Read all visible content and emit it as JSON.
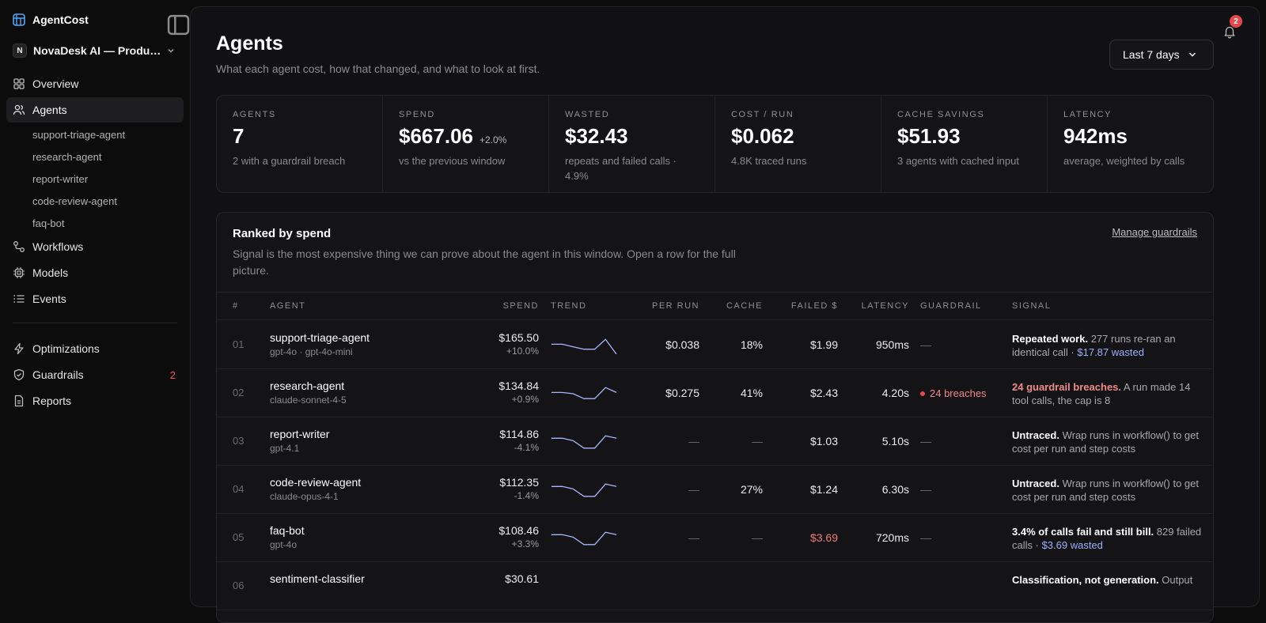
{
  "app": {
    "name": "AgentCost"
  },
  "org": {
    "initial": "N",
    "label": "NovaDesk AI — Production"
  },
  "nav": {
    "overview": "Overview",
    "agents": "Agents",
    "agent_children": [
      "support-triage-agent",
      "research-agent",
      "report-writer",
      "code-review-agent",
      "faq-bot"
    ],
    "workflows": "Workflows",
    "models": "Models",
    "events": "Events",
    "optimizations": "Optimizations",
    "guardrails": "Guardrails",
    "guardrails_count": "2",
    "reports": "Reports"
  },
  "header": {
    "title": "Agents",
    "subtitle": "What each agent cost, how that changed, and what to look at first.",
    "range": "Last 7 days",
    "notifications": "2"
  },
  "stats": [
    {
      "label": "Agents",
      "value": "7",
      "delta": "",
      "desc": "2 with a guardrail breach"
    },
    {
      "label": "Spend",
      "value": "$667.06",
      "delta": "+2.0%",
      "desc": "vs the previous window"
    },
    {
      "label": "Wasted",
      "value": "$32.43",
      "delta": "",
      "desc": "repeats and failed calls · 4.9%"
    },
    {
      "label": "Cost / run",
      "value": "$0.062",
      "delta": "",
      "desc": "4.8K traced runs"
    },
    {
      "label": "Cache savings",
      "value": "$51.93",
      "delta": "",
      "desc": "3 agents with cached input"
    },
    {
      "label": "Latency",
      "value": "942ms",
      "delta": "",
      "desc": "average, weighted by calls"
    }
  ],
  "table": {
    "title": "Ranked by spend",
    "desc": "Signal is the most expensive thing we can prove about the agent in this window. Open a row for the full picture.",
    "manage_link": "Manage guardrails",
    "columns": {
      "num": "#",
      "agent": "Agent",
      "spend": "Spend",
      "trend": "Trend",
      "per_run": "Per run",
      "cache": "Cache",
      "failed": "Failed $",
      "latency": "Latency",
      "guardrail": "Guardrail",
      "signal": "Signal"
    },
    "rows": [
      {
        "num": "01",
        "name": "support-triage-agent",
        "model": "gpt-4o · gpt-4o-mini",
        "spend": "$165.50",
        "delta": "+10.0%",
        "trend": [
          4,
          4,
          5,
          6,
          6,
          2,
          8
        ],
        "per_run": "$0.038",
        "cache": "18%",
        "failed": "$1.99",
        "failed_alert": false,
        "latency": "950ms",
        "guardrail": "—",
        "breach": false,
        "sig_bold": "Repeated work.",
        "sig_text": " 277 runs re-ran an identical call · ",
        "sig_hl": "$17.87 wasted"
      },
      {
        "num": "02",
        "name": "research-agent",
        "model": "claude-sonnet-4-5",
        "spend": "$134.84",
        "delta": "+0.9%",
        "trend": [
          4,
          4,
          4.5,
          6.5,
          6.5,
          2,
          4
        ],
        "per_run": "$0.275",
        "cache": "41%",
        "failed": "$2.43",
        "failed_alert": false,
        "latency": "4.20s",
        "guardrail": "24 breaches",
        "breach": true,
        "sig_bad": "24 guardrail breaches.",
        "sig_text": " A run made 14 tool calls, the cap is 8",
        "sig_hl": ""
      },
      {
        "num": "03",
        "name": "report-writer",
        "model": "gpt-4.1",
        "spend": "$114.86",
        "delta": "-4.1%",
        "trend": [
          3,
          3,
          4,
          7,
          7,
          2,
          3
        ],
        "per_run": "—",
        "cache": "—",
        "failed": "$1.03",
        "failed_alert": false,
        "latency": "5.10s",
        "guardrail": "—",
        "breach": false,
        "sig_bold": "Untraced.",
        "sig_text": " Wrap runs in workflow() to get cost per run and step costs",
        "sig_hl": ""
      },
      {
        "num": "04",
        "name": "code-review-agent",
        "model": "claude-opus-4-1",
        "spend": "$112.35",
        "delta": "-1.4%",
        "trend": [
          3,
          3,
          4,
          7,
          7,
          2,
          3
        ],
        "per_run": "—",
        "cache": "27%",
        "failed": "$1.24",
        "failed_alert": false,
        "latency": "6.30s",
        "guardrail": "—",
        "breach": false,
        "sig_bold": "Untraced.",
        "sig_text": " Wrap runs in workflow() to get cost per run and step costs",
        "sig_hl": ""
      },
      {
        "num": "05",
        "name": "faq-bot",
        "model": "gpt-4o",
        "spend": "$108.46",
        "delta": "+3.3%",
        "trend": [
          3,
          3,
          4,
          7,
          7,
          2,
          3
        ],
        "per_run": "—",
        "cache": "—",
        "failed": "$3.69",
        "failed_alert": true,
        "latency": "720ms",
        "guardrail": "—",
        "breach": false,
        "sig_bold": "3.4% of calls fail and still bill.",
        "sig_text": " 829 failed calls · ",
        "sig_hl": "$3.69 wasted"
      },
      {
        "num": "06",
        "name": "sentiment-classifier",
        "model": "",
        "spend": "$30.61",
        "delta": "",
        "trend": [],
        "per_run": "",
        "cache": "",
        "failed": "",
        "failed_alert": false,
        "latency": "",
        "guardrail": "",
        "breach": false,
        "sig_bold": "Classification, not generation.",
        "sig_text": " Output",
        "sig_hl": ""
      }
    ]
  }
}
